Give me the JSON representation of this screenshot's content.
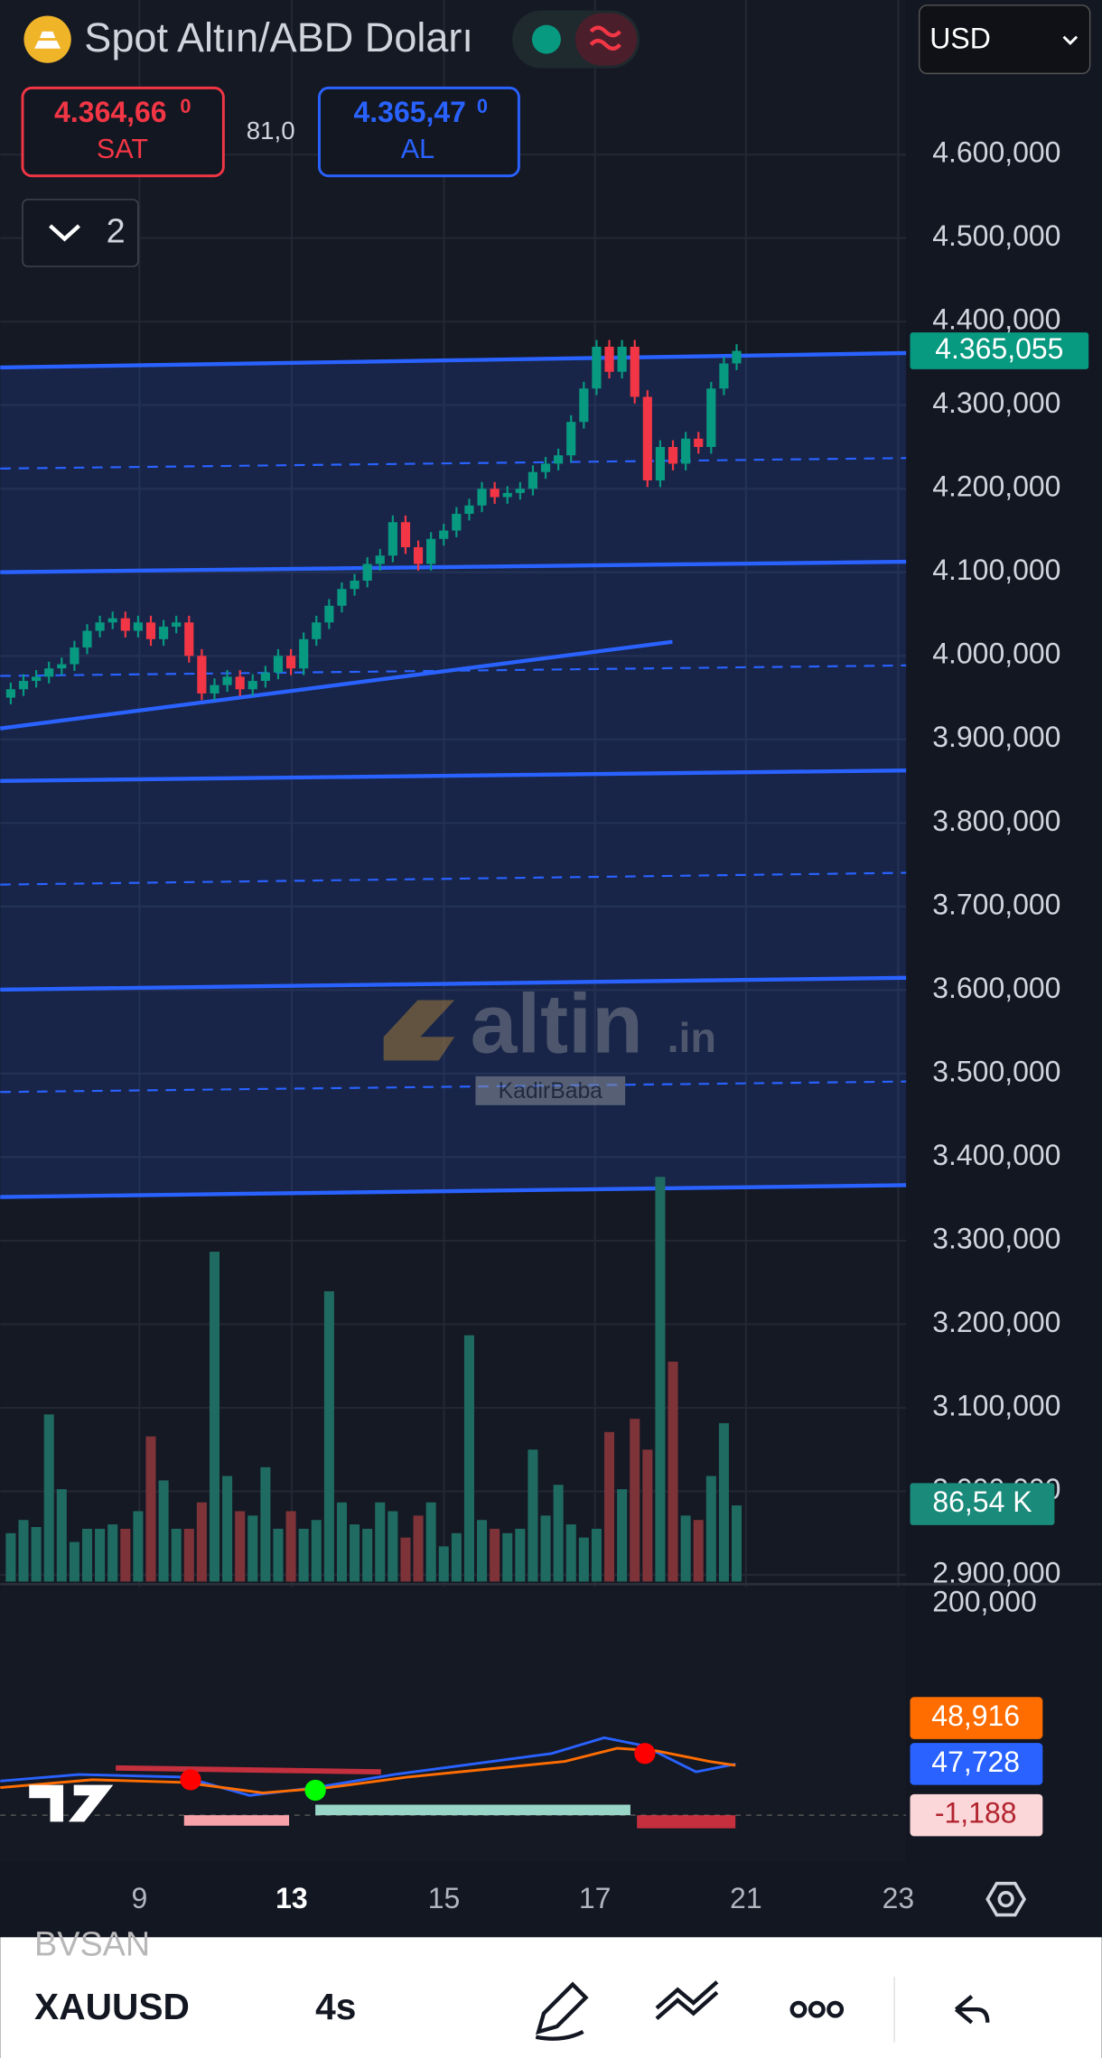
{
  "header": {
    "title": "Spot Altın/ABD Doları",
    "currency": "USD"
  },
  "quote": {
    "sell": {
      "price": "4.364,66",
      "fraction": "0",
      "label": "SAT"
    },
    "spread": "81,0",
    "buy": {
      "price": "4.365,47",
      "fraction": "0",
      "label": "AL"
    }
  },
  "layers_count": "2",
  "chart_data": {
    "type": "candlestick",
    "candles": [
      [
        3950,
        3968,
        3942,
        3960
      ],
      [
        3960,
        3978,
        3952,
        3970
      ],
      [
        3970,
        3983,
        3962,
        3975
      ],
      [
        3975,
        3993,
        3967,
        3985
      ],
      [
        3985,
        3998,
        3977,
        3990
      ],
      [
        3990,
        4018,
        3982,
        4010
      ],
      [
        4010,
        4038,
        4002,
        4030
      ],
      [
        4030,
        4048,
        4022,
        4040
      ],
      [
        4040,
        4053,
        4032,
        4045
      ],
      [
        4045,
        4053,
        4022,
        4030
      ],
      [
        4030,
        4048,
        4022,
        4040
      ],
      [
        4040,
        4048,
        4012,
        4020
      ],
      [
        4020,
        4043,
        4012,
        4035
      ],
      [
        4035,
        4048,
        4027,
        4040
      ],
      [
        4040,
        4048,
        3992,
        4000
      ],
      [
        4000,
        4008,
        3947,
        3955
      ],
      [
        3955,
        3973,
        3947,
        3965
      ],
      [
        3965,
        3983,
        3957,
        3975
      ],
      [
        3975,
        3983,
        3952,
        3960
      ],
      [
        3960,
        3978,
        3952,
        3970
      ],
      [
        3970,
        3988,
        3962,
        3980
      ],
      [
        3980,
        4008,
        3972,
        4000
      ],
      [
        4000,
        4008,
        3977,
        3985
      ],
      [
        3985,
        4028,
        3977,
        4020
      ],
      [
        4020,
        4048,
        4012,
        4040
      ],
      [
        4040,
        4068,
        4032,
        4060
      ],
      [
        4060,
        4088,
        4052,
        4080
      ],
      [
        4080,
        4098,
        4072,
        4090
      ],
      [
        4090,
        4118,
        4082,
        4110
      ],
      [
        4110,
        4128,
        4102,
        4120
      ],
      [
        4120,
        4168,
        4112,
        4160
      ],
      [
        4160,
        4168,
        4122,
        4130
      ],
      [
        4130,
        4138,
        4102,
        4110
      ],
      [
        4110,
        4148,
        4102,
        4140
      ],
      [
        4140,
        4158,
        4132,
        4150
      ],
      [
        4150,
        4178,
        4142,
        4170
      ],
      [
        4170,
        4188,
        4162,
        4180
      ],
      [
        4180,
        4208,
        4172,
        4200
      ],
      [
        4200,
        4208,
        4182,
        4190
      ],
      [
        4190,
        4203,
        4182,
        4195
      ],
      [
        4195,
        4208,
        4187,
        4200
      ],
      [
        4200,
        4228,
        4192,
        4220
      ],
      [
        4220,
        4238,
        4212,
        4230
      ],
      [
        4230,
        4248,
        4222,
        4240
      ],
      [
        4240,
        4288,
        4232,
        4280
      ],
      [
        4280,
        4328,
        4272,
        4320
      ],
      [
        4320,
        4378,
        4312,
        4370
      ],
      [
        4370,
        4378,
        4332,
        4340
      ],
      [
        4340,
        4378,
        4332,
        4370
      ],
      [
        4370,
        4378,
        4302,
        4310
      ],
      [
        4310,
        4318,
        4202,
        4210
      ],
      [
        4210,
        4258,
        4202,
        4250
      ],
      [
        4250,
        4258,
        4222,
        4230
      ],
      [
        4230,
        4268,
        4222,
        4260
      ],
      [
        4260,
        4268,
        4242,
        4250
      ],
      [
        4250,
        4328,
        4242,
        4320
      ],
      [
        4320,
        4358,
        4312,
        4350
      ],
      [
        4350,
        4373,
        4342,
        4365
      ]
    ],
    "ylim": [
      2892,
      4785
    ],
    "yticks": [
      {
        "value": 2900,
        "label": "2.900,000"
      },
      {
        "value": 3000,
        "label": "3.000,000"
      },
      {
        "value": 3100,
        "label": "3.100,000"
      },
      {
        "value": 3200,
        "label": "3.200,000"
      },
      {
        "value": 3300,
        "label": "3.300,000"
      },
      {
        "value": 3400,
        "label": "3.400,000"
      },
      {
        "value": 3500,
        "label": "3.500,000"
      },
      {
        "value": 3600,
        "label": "3.600,000"
      },
      {
        "value": 3700,
        "label": "3.700,000"
      },
      {
        "value": 3800,
        "label": "3.800,000"
      },
      {
        "value": 3900,
        "label": "3.900,000"
      },
      {
        "value": 4000,
        "label": "4.000,000"
      },
      {
        "value": 4100,
        "label": "4.100,000"
      },
      {
        "value": 4200,
        "label": "4.200,000"
      },
      {
        "value": 4300,
        "label": "4.300,000"
      },
      {
        "value": 4400,
        "label": "4.400,000"
      },
      {
        "value": 4500,
        "label": "4.500,000"
      },
      {
        "value": 4600,
        "label": "4.600,000"
      }
    ],
    "last_price": {
      "value": 4365.055,
      "label": "4.365,055"
    },
    "volume": {
      "values": [
        55,
        70,
        62,
        190,
        105,
        45,
        60,
        60,
        65,
        60,
        80,
        165,
        115,
        60,
        60,
        90,
        375,
        120,
        80,
        75,
        130,
        60,
        80,
        60,
        70,
        330,
        90,
        65,
        60,
        90,
        80,
        50,
        75,
        90,
        40,
        55,
        280,
        70,
        60,
        55,
        60,
        150,
        75,
        110,
        65,
        50,
        60,
        170,
        105,
        185,
        150,
        460,
        250,
        75,
        70,
        120,
        180,
        86.54
      ],
      "last_label": "86,54 K"
    },
    "x_labels": [
      "9",
      "13",
      "15",
      "17",
      "21",
      "23"
    ]
  },
  "indicator": {
    "scale_label": "200,000",
    "labels": [
      "48,916",
      "47,728",
      "-1,188"
    ]
  },
  "watermark": {
    "brand": "altin",
    "suffix": ".in",
    "author": "KadirBaba"
  },
  "toolbar": {
    "faded": "BVSAN",
    "symbol": "XAUUSD",
    "interval": "4s"
  }
}
